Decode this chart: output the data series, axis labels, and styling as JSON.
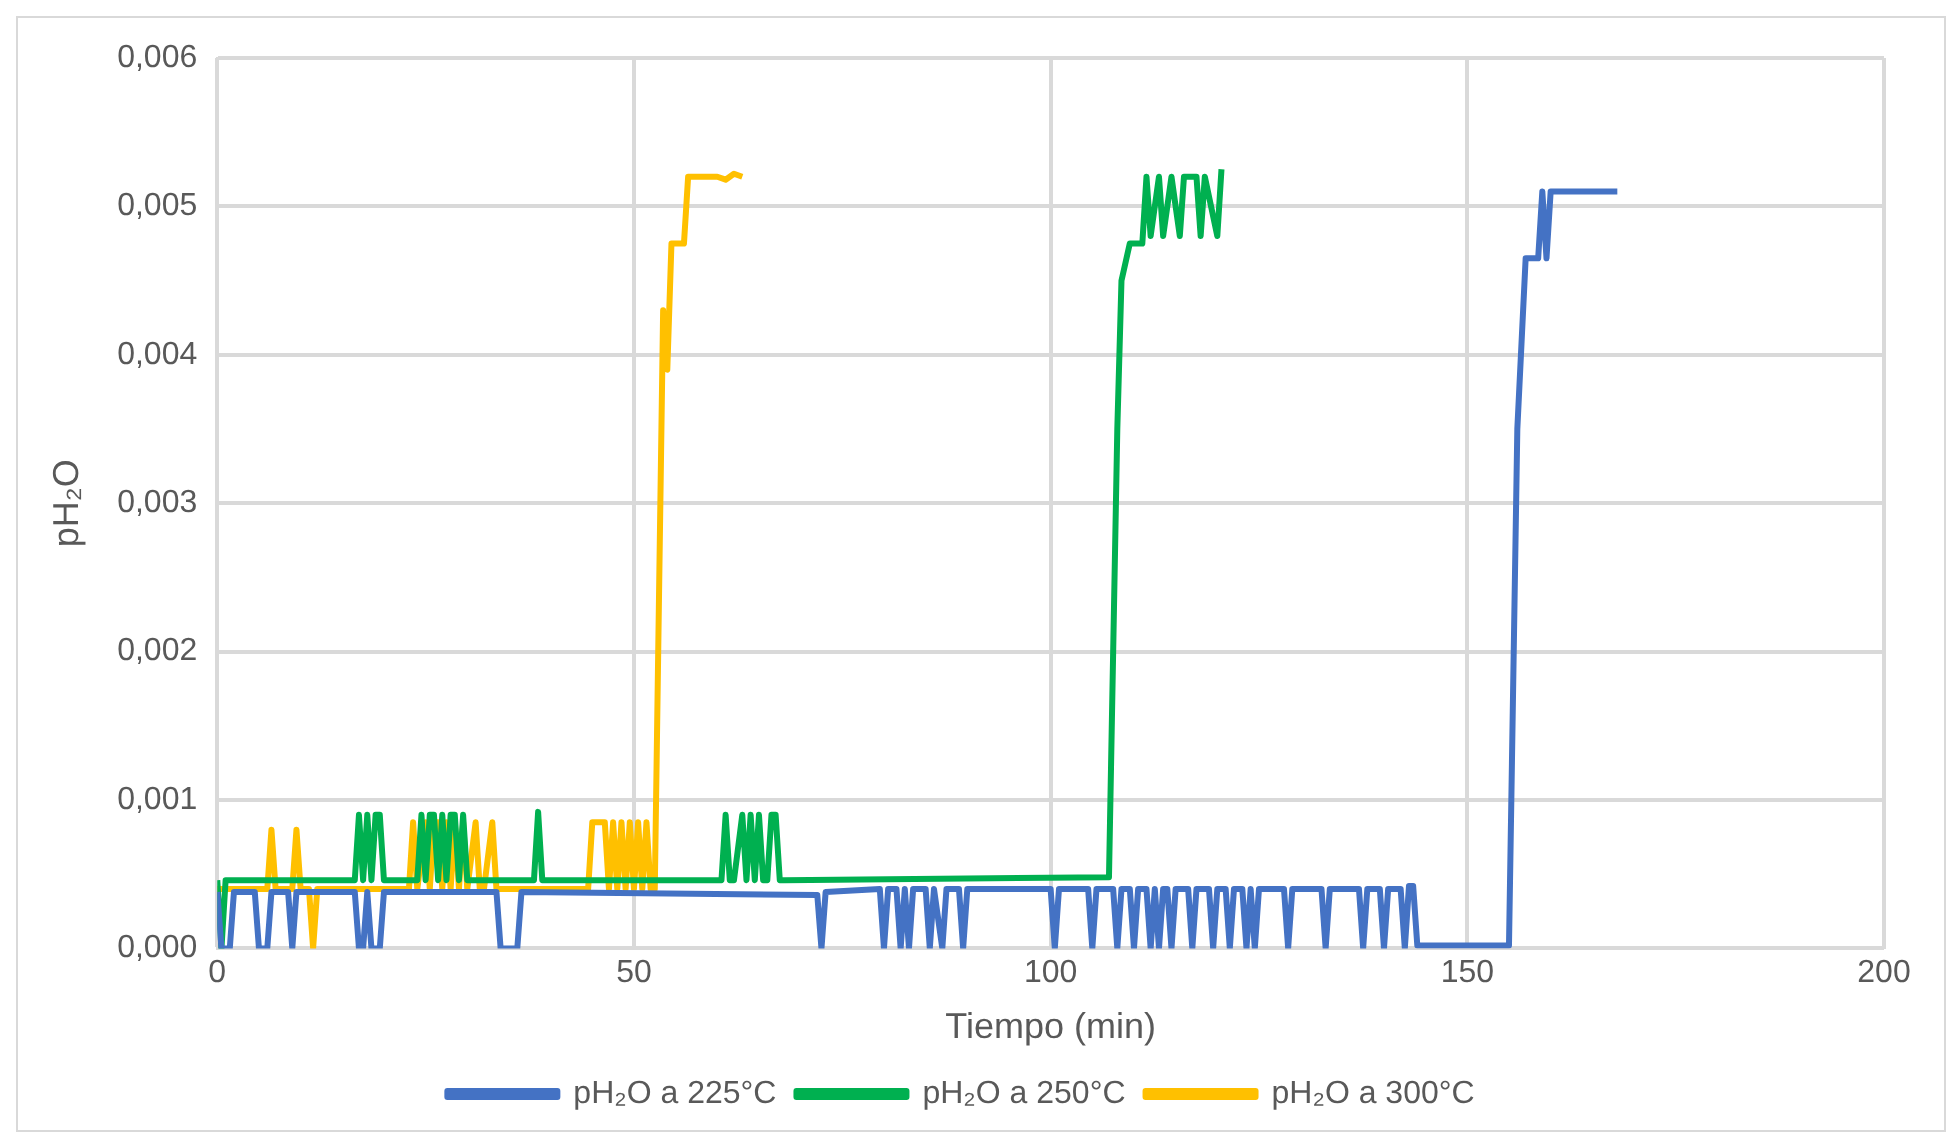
{
  "chart_data": {
    "type": "line",
    "xlabel": "Tiempo (min)",
    "ylabel": "pH₂O",
    "xlim": [
      0,
      200
    ],
    "xticks": [
      0,
      50,
      100,
      150,
      200
    ],
    "ylim": [
      0,
      0.006
    ],
    "yticks": [
      {
        "value": 0,
        "label": "0,000"
      },
      {
        "value": 0.001,
        "label": "0,001"
      },
      {
        "value": 0.002,
        "label": "0,002"
      },
      {
        "value": 0.003,
        "label": "0,003"
      },
      {
        "value": 0.004,
        "label": "0,004"
      },
      {
        "value": 0.005,
        "label": "0,005"
      },
      {
        "value": 0.006,
        "label": "0,006"
      }
    ],
    "grid": true,
    "legend": "bottom",
    "marker": "none",
    "line_style": "solid",
    "series": [
      {
        "name": "pH₂O a 225°C",
        "color": "#4472c4",
        "x": [
          0,
          0.5,
          1.5,
          2,
          4.5,
          5,
          6,
          6.5,
          8.5,
          9,
          9.5,
          16.5,
          17,
          17.5,
          18,
          18.5,
          19.5,
          20,
          33.5,
          34,
          36,
          36.5,
          72,
          72.5,
          73,
          79.5,
          80,
          80.5,
          81.5,
          82,
          82.5,
          83,
          83.5,
          85,
          85.5,
          86,
          87,
          87.5,
          89,
          89.5,
          90,
          100,
          100.5,
          101,
          104.5,
          105,
          105.5,
          107.5,
          108,
          108.5,
          109.5,
          110,
          110.5,
          111.5,
          112,
          112.5,
          113,
          113.5,
          114,
          114.5,
          115,
          115.5,
          116.5,
          117,
          117.5,
          119,
          119.5,
          120,
          121,
          121.5,
          122,
          123,
          123.5,
          124,
          124.5,
          125,
          128,
          128.5,
          129,
          132.5,
          133,
          133.5,
          137,
          137.5,
          138,
          139.5,
          140,
          140.5,
          142,
          142.5,
          143,
          143.5,
          144,
          155,
          156,
          157,
          158.5,
          159,
          159.5,
          160,
          163,
          168
        ],
        "values": [
          0.00038,
          0,
          0,
          0.00038,
          0.00038,
          0,
          0,
          0.00038,
          0.00038,
          0,
          0.00038,
          0.00038,
          0,
          0,
          0.00038,
          0,
          0,
          0.00038,
          0.00038,
          0,
          0,
          0.00038,
          0.00036,
          0,
          0.00038,
          0.0004,
          0,
          0.0004,
          0.0004,
          0,
          0.0004,
          0,
          0.0004,
          0.0004,
          0,
          0.0004,
          0,
          0.0004,
          0.0004,
          0,
          0.0004,
          0.0004,
          0,
          0.0004,
          0.0004,
          0,
          0.0004,
          0.0004,
          0,
          0.0004,
          0.0004,
          0,
          0.0004,
          0.0004,
          0,
          0.0004,
          0,
          0.0004,
          0.0004,
          0,
          0.0004,
          0.0004,
          0.0004,
          0,
          0.0004,
          0.0004,
          0,
          0.0004,
          0.0004,
          0,
          0.0004,
          0.0004,
          0,
          0.0004,
          0,
          0.0004,
          0.0004,
          0,
          0.0004,
          0.0004,
          0,
          0.0004,
          0.0004,
          0,
          0.0004,
          0.0004,
          0,
          0.0004,
          0.0004,
          0,
          0.00042,
          0.00042,
          2e-05,
          2e-05,
          0.0035,
          0.00465,
          0.00465,
          0.0051,
          0.00465,
          0.0051,
          0.0051,
          0.0051
        ]
      },
      {
        "name": "pH₂O a 250°C",
        "color": "#00b050",
        "x": [
          0,
          0.5,
          1,
          16.5,
          17,
          17.5,
          18,
          18.5,
          19,
          19.5,
          20,
          20.5,
          24,
          24.5,
          25,
          25.5,
          26,
          26.5,
          27,
          27.5,
          28,
          28.5,
          29,
          29.5,
          30,
          30.5,
          38,
          38.5,
          39,
          60.5,
          61,
          61.5,
          62,
          63,
          63.5,
          64,
          64.5,
          65,
          65.5,
          66,
          66.5,
          67,
          67.5,
          68,
          107,
          108,
          108.5,
          109.5,
          111,
          111.5,
          112,
          113,
          113.5,
          114.5,
          115.5,
          116,
          117.5,
          118,
          118.5,
          120,
          120.5
        ],
        "values": [
          0.00046,
          0,
          0.00046,
          0.00046,
          0.0009,
          0.00046,
          0.0009,
          0.00046,
          0.0009,
          0.0009,
          0.00046,
          0.00046,
          0.00046,
          0.0009,
          0.00046,
          0.0009,
          0.0009,
          0.00046,
          0.0009,
          0.00046,
          0.0009,
          0.0009,
          0.00046,
          0.0009,
          0.00046,
          0.00046,
          0.00046,
          0.00092,
          0.00046,
          0.00046,
          0.0009,
          0.00046,
          0.00046,
          0.0009,
          0.00046,
          0.0009,
          0.00046,
          0.0009,
          0.00046,
          0.00046,
          0.0009,
          0.0009,
          0.00046,
          0.00046,
          0.00048,
          0.0035,
          0.0045,
          0.00475,
          0.00475,
          0.0052,
          0.0048,
          0.0052,
          0.0048,
          0.0052,
          0.0048,
          0.0052,
          0.0052,
          0.0048,
          0.0052,
          0.0048,
          0.00525
        ]
      },
      {
        "name": "pH₂O a 300°C",
        "color": "#ffc000",
        "x": [
          0,
          6,
          6.5,
          7,
          9,
          9.5,
          10,
          11,
          11.5,
          12,
          23,
          23.5,
          24,
          25,
          25.5,
          26,
          26.5,
          27,
          27.5,
          28,
          28.5,
          29,
          29.5,
          30,
          31,
          31.5,
          32,
          33,
          33.5,
          44.5,
          45,
          46.5,
          47,
          47.5,
          48,
          48.5,
          49,
          49.5,
          50,
          50.5,
          51,
          51.5,
          52,
          52.5,
          53.5,
          54,
          54.5,
          56,
          56.5,
          60,
          61,
          62,
          63
        ],
        "values": [
          0.0004,
          0.0004,
          0.0008,
          0.0004,
          0.0004,
          0.0008,
          0.0004,
          0.0004,
          0,
          0.0004,
          0.0004,
          0.00085,
          0.0004,
          0.00085,
          0.0004,
          0.00085,
          0.00085,
          0.0004,
          0.00085,
          0.0004,
          0.00085,
          0.0004,
          0.00085,
          0.0004,
          0.00085,
          0.0004,
          0.0004,
          0.00085,
          0.0004,
          0.0004,
          0.00085,
          0.00085,
          0.0004,
          0.00085,
          0.0004,
          0.00085,
          0.0004,
          0.00085,
          0.0004,
          0.00085,
          0.0004,
          0.00085,
          0.0004,
          0.0004,
          0.0043,
          0.0039,
          0.00475,
          0.00475,
          0.0052,
          0.0052,
          0.00518,
          0.00522,
          0.0052
        ]
      }
    ]
  }
}
